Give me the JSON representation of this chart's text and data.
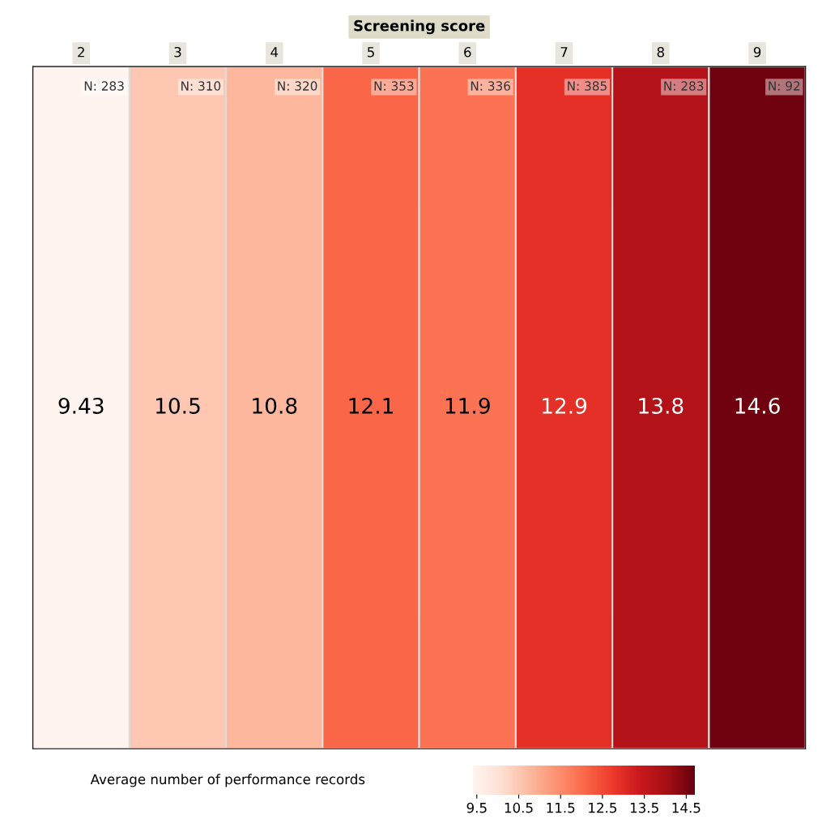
{
  "chart_data": {
    "type": "heatmap",
    "xlabel": "Screening score",
    "clabel": "Average number of performance records",
    "categories": [
      "2",
      "3",
      "4",
      "5",
      "6",
      "7",
      "8",
      "9"
    ],
    "y_categories": [
      null
    ],
    "cells": [
      [
        9.43,
        10.5,
        10.8,
        12.1,
        11.9,
        12.9,
        13.8,
        14.6
      ]
    ],
    "data_labels": true,
    "clim": [
      9.4,
      14.7
    ],
    "cticks": [
      9.5,
      10.5,
      11.5,
      12.5,
      13.5,
      14.5
    ],
    "tick_labels": "x",
    "annotations": [
      "N: 283",
      "N: 310",
      "N: 320",
      "N: 353",
      "N: 336",
      "N: 385",
      "N: 283",
      "N: 92"
    ]
  }
}
